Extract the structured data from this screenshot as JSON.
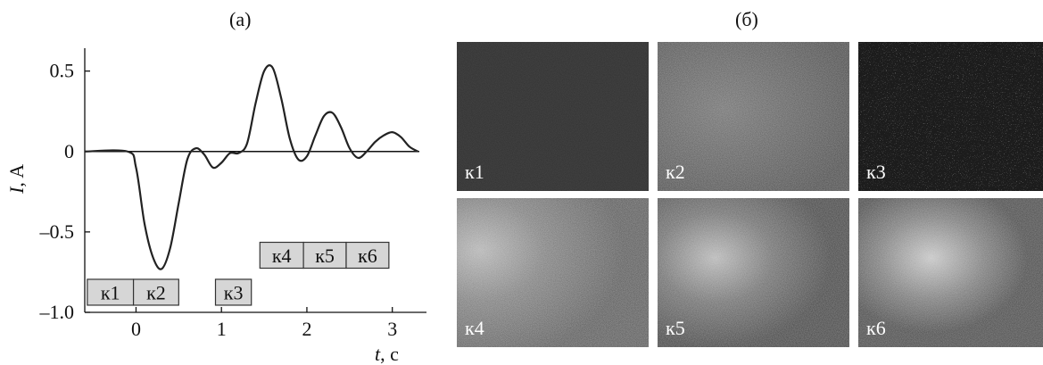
{
  "panel_a_label": "(а)",
  "panel_b_label": "(б)",
  "chart_data": {
    "type": "line",
    "title": "",
    "xlabel": "t, с",
    "ylabel": "I, A",
    "xlim": [
      -0.6,
      3.4
    ],
    "ylim": [
      -1.0,
      0.62
    ],
    "xticks": [
      0,
      1,
      2,
      3
    ],
    "yticks": [
      0.5,
      0,
      -0.5,
      -1.0
    ],
    "ytick_labels": [
      "0.5",
      "0",
      "–0.5",
      "–1.0"
    ],
    "grid": false,
    "series": [
      {
        "x": [
          -0.6,
          -0.1,
          0.0,
          0.1,
          0.2,
          0.3,
          0.4,
          0.5,
          0.6,
          0.7,
          0.8,
          0.9,
          1.0,
          1.1,
          1.2,
          1.3,
          1.4,
          1.5,
          1.6,
          1.7,
          1.8,
          1.9,
          2.0,
          2.1,
          2.2,
          2.3,
          2.4,
          2.5,
          2.6,
          2.7,
          2.8,
          2.9,
          3.0,
          3.1,
          3.2,
          3.3
        ],
        "y": [
          0.0,
          0.0,
          -0.1,
          -0.45,
          -0.66,
          -0.73,
          -0.6,
          -0.32,
          -0.05,
          0.02,
          -0.02,
          -0.1,
          -0.07,
          -0.01,
          -0.01,
          0.05,
          0.3,
          0.5,
          0.52,
          0.33,
          0.08,
          -0.05,
          -0.03,
          0.1,
          0.22,
          0.24,
          0.15,
          0.02,
          -0.04,
          0.0,
          0.06,
          0.1,
          0.12,
          0.09,
          0.03,
          0.0
        ]
      }
    ],
    "zero_line": true,
    "boxes": [
      {
        "label": "к1",
        "x0": -0.57,
        "x1": -0.03,
        "y": -0.875
      },
      {
        "label": "к2",
        "x0": -0.03,
        "x1": 0.5,
        "y": -0.875
      },
      {
        "label": "к3",
        "x0": 0.93,
        "x1": 1.35,
        "y": -0.875
      },
      {
        "label": "к4",
        "x0": 1.45,
        "x1": 1.96,
        "y": -0.645
      },
      {
        "label": "к5",
        "x0": 1.96,
        "x1": 2.46,
        "y": -0.645
      },
      {
        "label": "к6",
        "x0": 2.46,
        "x1": 2.96,
        "y": -0.645
      }
    ]
  },
  "frames": [
    {
      "label": "к1"
    },
    {
      "label": "к2"
    },
    {
      "label": "к3"
    },
    {
      "label": "к4"
    },
    {
      "label": "к5"
    },
    {
      "label": "к6"
    }
  ]
}
